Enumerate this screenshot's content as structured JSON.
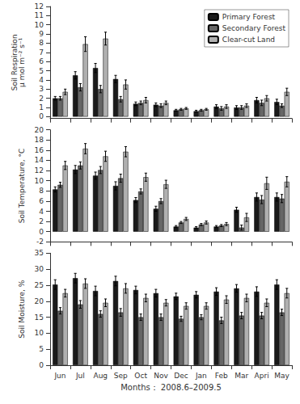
{
  "chart_data": [
    {
      "type": "bar",
      "ylabel": "Soil Respiration\nμ mol m⁻² s⁻¹",
      "categories": [
        "Jun",
        "Jul",
        "Aug",
        "Sep",
        "Oct",
        "Nov",
        "Dec",
        "Jan",
        "Feb",
        "Mar",
        "Apri",
        "May"
      ],
      "series": [
        {
          "name": "Primary Forest",
          "color": "#1a1a1a",
          "values": [
            2.0,
            4.5,
            5.3,
            4.1,
            1.4,
            1.3,
            0.7,
            0.6,
            1.1,
            1.0,
            1.8,
            1.6
          ],
          "err": [
            0.2,
            0.4,
            0.5,
            0.4,
            0.2,
            0.2,
            0.1,
            0.1,
            0.2,
            0.2,
            0.3,
            0.3
          ]
        },
        {
          "name": "Secondary Forest",
          "color": "#666666",
          "values": [
            2.0,
            3.2,
            3.0,
            1.9,
            1.5,
            1.2,
            0.8,
            0.7,
            0.9,
            1.0,
            1.5,
            1.2
          ],
          "err": [
            0.2,
            0.4,
            0.4,
            0.3,
            0.2,
            0.2,
            0.1,
            0.1,
            0.2,
            0.2,
            0.3,
            0.2
          ]
        },
        {
          "name": "Clear-cut Land",
          "color": "#b0b0b0",
          "values": [
            2.7,
            7.9,
            8.5,
            3.5,
            1.8,
            1.5,
            0.9,
            0.8,
            1.1,
            1.2,
            2.0,
            2.7
          ],
          "err": [
            0.3,
            0.8,
            0.7,
            0.5,
            0.3,
            0.2,
            0.1,
            0.1,
            0.2,
            0.2,
            0.3,
            0.4
          ]
        }
      ],
      "ylim": [
        -0.2,
        12
      ],
      "yticks": [
        0,
        1,
        2,
        3,
        4,
        5,
        6,
        7,
        8,
        9,
        10,
        11,
        12
      ],
      "grid": false,
      "legend": "upper right",
      "tick_labels": "y"
    },
    {
      "type": "bar",
      "ylabel": "Soil Temperature, °C",
      "categories": [
        "Jun",
        "Jul",
        "Aug",
        "Sep",
        "Oct",
        "Nov",
        "Dec",
        "Jan",
        "Feb",
        "Mar",
        "Apri",
        "May"
      ],
      "series": [
        {
          "name": "Primary Forest",
          "color": "#1a1a1a",
          "values": [
            8.3,
            12.2,
            11.0,
            9.0,
            6.2,
            4.5,
            1.0,
            0.8,
            1.0,
            4.3,
            6.8,
            6.8
          ],
          "err": [
            0.5,
            0.8,
            0.7,
            0.8,
            0.5,
            0.5,
            0.2,
            0.2,
            0.2,
            0.5,
            0.8,
            0.8
          ]
        },
        {
          "name": "Secondary Forest",
          "color": "#666666",
          "values": [
            9.2,
            13.0,
            12.1,
            10.5,
            7.9,
            6.0,
            1.8,
            1.4,
            1.2,
            0.8,
            6.3,
            6.5
          ],
          "err": [
            0.5,
            0.7,
            0.7,
            0.8,
            0.5,
            0.5,
            0.2,
            0.2,
            0.2,
            0.5,
            0.8,
            0.8
          ]
        },
        {
          "name": "Clear-cut Land",
          "color": "#b0b0b0",
          "values": [
            13.0,
            16.3,
            14.8,
            15.7,
            10.7,
            9.3,
            2.5,
            1.8,
            1.5,
            2.8,
            9.5,
            9.8
          ],
          "err": [
            0.8,
            1.0,
            1.0,
            1.0,
            0.8,
            0.8,
            0.3,
            0.3,
            0.3,
            0.8,
            1.2,
            1.0
          ]
        }
      ],
      "ylim": [
        -2,
        20
      ],
      "yticks": [
        -2,
        0,
        2,
        4,
        6,
        8,
        10,
        12,
        14,
        16,
        18,
        20
      ],
      "grid": false,
      "tick_labels": "y"
    },
    {
      "type": "bar",
      "ylabel": "Soil Moisture, %",
      "xlabel": "Months： 2008.6–2009.5",
      "categories": [
        "Jun",
        "Jul",
        "Aug",
        "Sep",
        "Oct",
        "Nov",
        "Dec",
        "Jan",
        "Feb",
        "Mar",
        "Apri",
        "May"
      ],
      "series": [
        {
          "name": "Primary Forest",
          "color": "#1a1a1a",
          "values": [
            25.2,
            27.2,
            23.2,
            26.3,
            23.5,
            22.5,
            21.5,
            22.0,
            23.0,
            24.0,
            23.0,
            25.2
          ],
          "err": [
            1.5,
            1.5,
            1.5,
            1.5,
            1.2,
            1.2,
            1.0,
            1.0,
            1.2,
            1.2,
            1.5,
            1.5
          ]
        },
        {
          "name": "Secondary Forest",
          "color": "#666666",
          "values": [
            17.0,
            19.0,
            16.0,
            16.5,
            15.0,
            15.0,
            14.5,
            15.0,
            14.0,
            15.5,
            15.5,
            16.5
          ],
          "err": [
            1.0,
            1.2,
            1.0,
            1.2,
            1.0,
            1.0,
            0.8,
            0.8,
            1.0,
            1.0,
            1.0,
            1.0
          ]
        },
        {
          "name": "Clear-cut Land",
          "color": "#b0b0b0",
          "values": [
            22.5,
            25.5,
            19.5,
            24.0,
            21.0,
            19.5,
            18.5,
            18.5,
            20.5,
            21.0,
            19.5,
            22.5
          ],
          "err": [
            1.2,
            1.5,
            1.2,
            1.5,
            1.2,
            1.0,
            1.0,
            1.0,
            1.2,
            1.2,
            1.2,
            1.5
          ]
        }
      ],
      "ylim": [
        0,
        35
      ],
      "yticks": [
        0,
        5,
        10,
        15,
        20,
        25,
        30,
        35
      ],
      "grid": false
    }
  ]
}
